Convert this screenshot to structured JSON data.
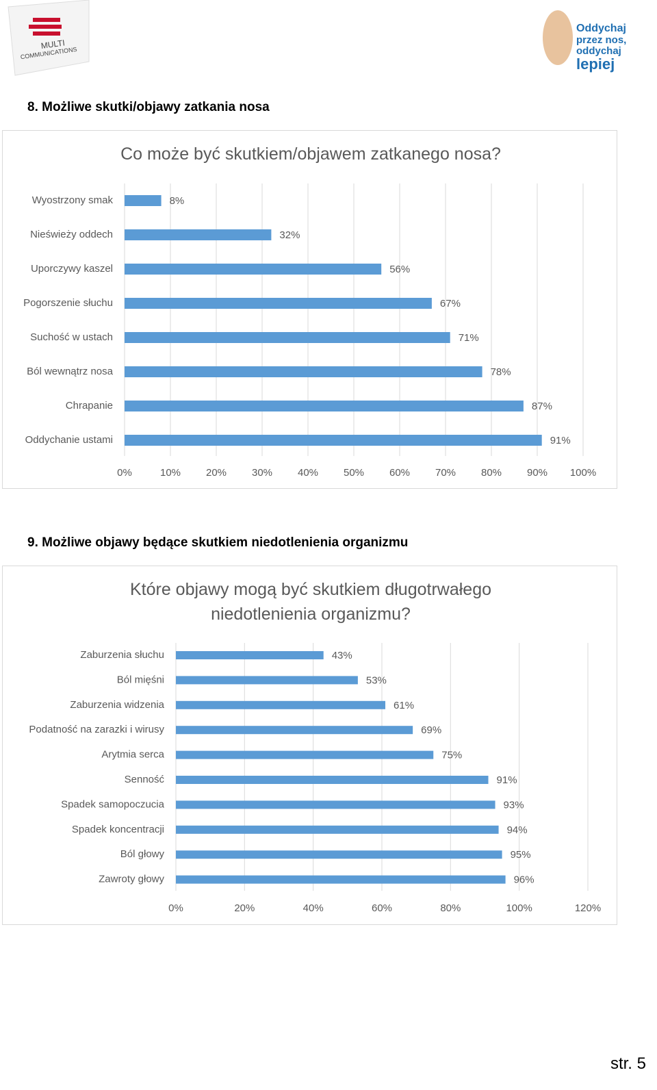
{
  "header": {
    "left_logo": [
      "MULTI",
      "COMMUNICATIONS"
    ],
    "right_logo": [
      "Oddychaj",
      "przez nos,",
      "oddychaj",
      "lepiej"
    ]
  },
  "headings": [
    "8.  Możliwe skutki/objawy zatkania nosa",
    "9.  Możliwe objawy będące skutkiem niedotlenienia organizmu"
  ],
  "chart_data": [
    {
      "type": "bar",
      "orientation": "horizontal",
      "title": "Co może być skutkiem/objawem zatkanego nosa?",
      "categories": [
        "Wyostrzony smak",
        "Nieświeży oddech",
        "Uporczywy kaszel",
        "Pogorszenie słuchu",
        "Suchość w ustach",
        "Ból wewnątrz nosa",
        "Chrapanie",
        "Oddychanie ustami"
      ],
      "values": [
        8,
        32,
        56,
        67,
        71,
        78,
        87,
        91
      ],
      "value_labels": [
        "8%",
        "32%",
        "56%",
        "67%",
        "71%",
        "78%",
        "87%",
        "91%"
      ],
      "color": "#5b9bd5",
      "xlim": [
        0,
        100
      ],
      "xticks": [
        {
          "value": 0,
          "label": "0%"
        },
        {
          "value": 10,
          "label": "10%"
        },
        {
          "value": 20,
          "label": "20%"
        },
        {
          "value": 30,
          "label": "30%"
        },
        {
          "value": 40,
          "label": "40%"
        },
        {
          "value": 50,
          "label": "50%"
        },
        {
          "value": 60,
          "label": "60%"
        },
        {
          "value": 70,
          "label": "70%"
        },
        {
          "value": 80,
          "label": "80%"
        },
        {
          "value": 90,
          "label": "90%"
        },
        {
          "value": 100,
          "label": "100%"
        }
      ],
      "grid": true
    },
    {
      "type": "bar",
      "orientation": "horizontal",
      "title": "Które objawy mogą być skutkiem długotrwałego niedotlenienia organizmu?",
      "categories": [
        "Zaburzenia słuchu",
        "Ból mięśni",
        "Zaburzenia widzenia",
        "Podatność na zarazki i wirusy",
        "Arytmia serca",
        "Senność",
        "Spadek samopoczucia",
        "Spadek koncentracji",
        "Ból głowy",
        "Zawroty głowy"
      ],
      "values": [
        43,
        53,
        61,
        69,
        75,
        91,
        93,
        94,
        95,
        96
      ],
      "value_labels": [
        "43%",
        "53%",
        "61%",
        "69%",
        "75%",
        "91%",
        "93%",
        "94%",
        "95%",
        "96%"
      ],
      "color": "#5b9bd5",
      "xlim": [
        0,
        120
      ],
      "xticks": [
        {
          "value": 0,
          "label": "0%"
        },
        {
          "value": 20,
          "label": "20%"
        },
        {
          "value": 40,
          "label": "40%"
        },
        {
          "value": 60,
          "label": "60%"
        },
        {
          "value": 80,
          "label": "80%"
        },
        {
          "value": 100,
          "label": "100%"
        },
        {
          "value": 120,
          "label": "120%"
        }
      ],
      "grid": true
    }
  ],
  "footer": {
    "page": "str. 5"
  }
}
